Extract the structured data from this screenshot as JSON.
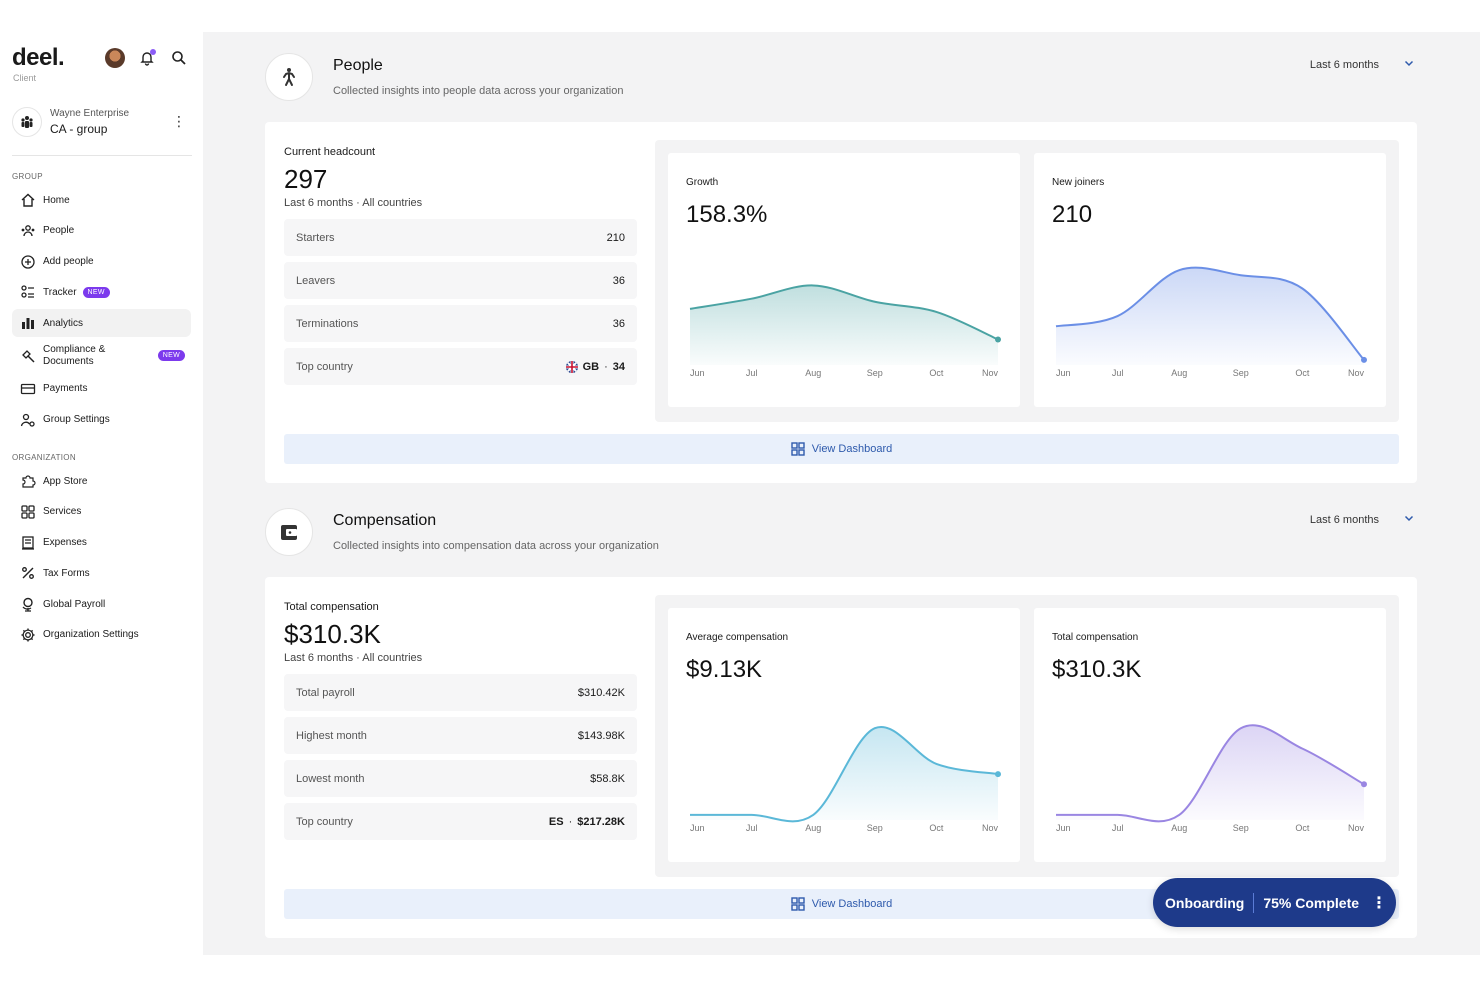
{
  "brand": {
    "logo": "deel.",
    "subtitle": "Client"
  },
  "org": {
    "name": "Wayne Enterprise",
    "group": "CA - group"
  },
  "sidebar": {
    "group_label": "GROUP",
    "group_items": [
      {
        "label": "Home",
        "icon": "home-icon"
      },
      {
        "label": "People",
        "icon": "people-icon"
      },
      {
        "label": "Add people",
        "icon": "add-circle-icon"
      },
      {
        "label": "Tracker",
        "icon": "tracker-icon",
        "badge": "NEW"
      },
      {
        "label": "Analytics",
        "icon": "analytics-icon",
        "active": true
      },
      {
        "label": "Compliance & Documents",
        "line1": "Compliance &",
        "line2": "Documents",
        "icon": "compliance-icon",
        "badge": "NEW"
      },
      {
        "label": "Payments",
        "icon": "card-icon"
      },
      {
        "label": "Group Settings",
        "icon": "group-settings-icon"
      }
    ],
    "org_label": "ORGANIZATION",
    "org_items": [
      {
        "label": "App Store",
        "icon": "puzzle-icon"
      },
      {
        "label": "Services",
        "icon": "grid-icon"
      },
      {
        "label": "Expenses",
        "icon": "receipt-icon"
      },
      {
        "label": "Tax Forms",
        "icon": "percent-icon"
      },
      {
        "label": "Global Payroll",
        "icon": "globe-payroll-icon"
      },
      {
        "label": "Organization Settings",
        "icon": "gear-icon"
      }
    ]
  },
  "people": {
    "title": "People",
    "subtitle": "Collected insights into people data across your organization",
    "period": "Last 6 months",
    "headcount_label": "Current headcount",
    "headcount_value": "297",
    "headcount_period": "Last 6 months · All countries",
    "rows": [
      {
        "label": "Starters",
        "value": "210"
      },
      {
        "label": "Leavers",
        "value": "36"
      },
      {
        "label": "Terminations",
        "value": "36"
      },
      {
        "label": "Top country",
        "country": "GB",
        "value": "34"
      }
    ],
    "view_label": "View Dashboard"
  },
  "compensation": {
    "title": "Compensation",
    "subtitle": "Collected insights into compensation data across your organization",
    "period": "Last 6 months",
    "total_label": "Total compensation",
    "total_value": "$310.3K",
    "total_period": "Last 6 months · All countries",
    "rows": [
      {
        "label": "Total payroll",
        "value": "$310.42K"
      },
      {
        "label": "Highest month",
        "value": "$143.98K"
      },
      {
        "label": "Lowest month",
        "value": "$58.8K"
      },
      {
        "label": "Top country",
        "country": "ES",
        "value": "$217.28K"
      }
    ],
    "view_label": "View Dashboard"
  },
  "chart_data": [
    {
      "type": "area",
      "title": "Growth",
      "headline": "158.3%",
      "categories": [
        "Jun",
        "Jul",
        "Aug",
        "Sep",
        "Oct",
        "Nov"
      ],
      "values": [
        55,
        65,
        78,
        62,
        52,
        25
      ],
      "ylim": [
        0,
        100
      ],
      "color": "#4aa3a3",
      "grid": false
    },
    {
      "type": "area",
      "title": "New joiners",
      "headline": "210",
      "categories": [
        "Jun",
        "Jul",
        "Aug",
        "Sep",
        "Oct",
        "Nov"
      ],
      "values": [
        38,
        48,
        93,
        88,
        75,
        5
      ],
      "ylim": [
        0,
        100
      ],
      "color": "#6b8fe6",
      "grid": false
    },
    {
      "type": "area",
      "title": "Average compensation",
      "headline": "$9.13K",
      "categories": [
        "Jun",
        "Jul",
        "Aug",
        "Sep",
        "Oct",
        "Nov"
      ],
      "values": [
        5,
        5,
        5,
        90,
        55,
        45
      ],
      "ylim": [
        0,
        100
      ],
      "color": "#5bb8d8",
      "grid": false
    },
    {
      "type": "area",
      "title": "Total compensation",
      "headline": "$310.3K",
      "categories": [
        "Jun",
        "Jul",
        "Aug",
        "Sep",
        "Oct",
        "Nov"
      ],
      "values": [
        5,
        5,
        5,
        90,
        70,
        35
      ],
      "ylim": [
        0,
        100
      ],
      "color": "#9a86e2",
      "grid": false
    }
  ],
  "onboarding": {
    "label": "Onboarding",
    "progress_label": "75% Complete",
    "progress": 0.75
  }
}
